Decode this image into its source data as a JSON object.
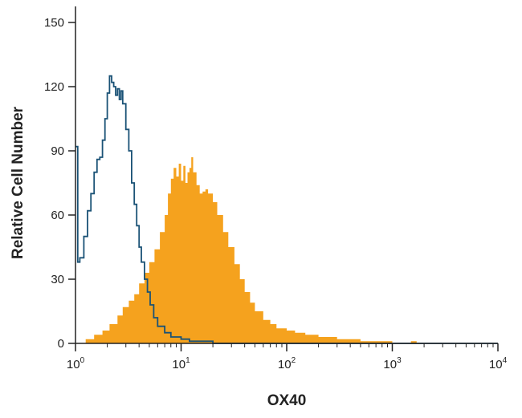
{
  "chart_data": {
    "type": "histogram",
    "xlabel": "OX40",
    "ylabel": "Relative Cell Number",
    "x_scale": "log",
    "xlim": [
      1,
      10000
    ],
    "ylim": [
      0,
      150
    ],
    "yticks": [
      "0",
      "30",
      "60",
      "90",
      "120",
      "150"
    ],
    "xticks": [
      {
        "base": "10",
        "exp": "0",
        "value": 1
      },
      {
        "base": "10",
        "exp": "1",
        "value": 10
      },
      {
        "base": "10",
        "exp": "2",
        "value": 100
      },
      {
        "base": "10",
        "exp": "3",
        "value": 1000
      },
      {
        "base": "10",
        "exp": "4",
        "value": 10000
      }
    ],
    "grid": false,
    "legend": "none",
    "series": [
      {
        "style": "filled",
        "color": "#f5a21e",
        "points": [
          [
            1,
            0
          ],
          [
            1.25,
            2
          ],
          [
            1.5,
            4
          ],
          [
            1.8,
            6
          ],
          [
            2.1,
            9
          ],
          [
            2.5,
            13
          ],
          [
            2.8,
            17
          ],
          [
            3.2,
            20
          ],
          [
            3.6,
            23
          ],
          [
            4.0,
            28
          ],
          [
            4.5,
            33
          ],
          [
            5.0,
            38
          ],
          [
            5.6,
            44
          ],
          [
            6.3,
            52
          ],
          [
            7.0,
            60
          ],
          [
            7.5,
            70
          ],
          [
            8.0,
            77
          ],
          [
            8.5,
            82
          ],
          [
            9.0,
            78
          ],
          [
            9.5,
            84
          ],
          [
            10,
            76
          ],
          [
            10.5,
            83
          ],
          [
            11,
            75
          ],
          [
            11.5,
            80
          ],
          [
            12,
            82
          ],
          [
            12.5,
            87
          ],
          [
            13,
            80
          ],
          [
            14,
            74
          ],
          [
            15,
            70
          ],
          [
            16,
            71
          ],
          [
            17,
            72
          ],
          [
            18,
            70
          ],
          [
            20,
            66
          ],
          [
            22,
            60
          ],
          [
            25,
            52
          ],
          [
            28,
            45
          ],
          [
            32,
            37
          ],
          [
            36,
            30
          ],
          [
            40,
            24
          ],
          [
            45,
            19
          ],
          [
            50,
            15
          ],
          [
            60,
            11
          ],
          [
            70,
            9
          ],
          [
            80,
            7
          ],
          [
            100,
            6
          ],
          [
            120,
            5
          ],
          [
            150,
            4
          ],
          [
            200,
            3
          ],
          [
            300,
            2
          ],
          [
            500,
            1
          ],
          [
            700,
            1
          ],
          [
            1000,
            0
          ],
          [
            1500,
            1
          ],
          [
            1700,
            0
          ],
          [
            10000,
            0
          ]
        ]
      },
      {
        "style": "line",
        "color": "#1a5276",
        "points": [
          [
            1,
            92
          ],
          [
            1.05,
            38
          ],
          [
            1.1,
            40
          ],
          [
            1.2,
            50
          ],
          [
            1.3,
            62
          ],
          [
            1.4,
            70
          ],
          [
            1.5,
            80
          ],
          [
            1.6,
            86
          ],
          [
            1.7,
            87
          ],
          [
            1.8,
            95
          ],
          [
            1.9,
            105
          ],
          [
            2.0,
            117
          ],
          [
            2.1,
            125
          ],
          [
            2.2,
            122
          ],
          [
            2.3,
            120
          ],
          [
            2.4,
            116
          ],
          [
            2.5,
            119
          ],
          [
            2.6,
            114
          ],
          [
            2.7,
            118
          ],
          [
            2.8,
            112
          ],
          [
            3.0,
            100
          ],
          [
            3.2,
            90
          ],
          [
            3.4,
            75
          ],
          [
            3.6,
            65
          ],
          [
            3.8,
            55
          ],
          [
            4.0,
            45
          ],
          [
            4.2,
            38
          ],
          [
            4.5,
            30
          ],
          [
            4.8,
            24
          ],
          [
            5.1,
            18
          ],
          [
            5.5,
            12
          ],
          [
            6.0,
            8
          ],
          [
            7.0,
            5
          ],
          [
            8.0,
            3
          ],
          [
            10,
            2
          ],
          [
            12,
            1
          ],
          [
            15,
            1
          ],
          [
            20,
            0
          ],
          [
            10000,
            0
          ]
        ]
      }
    ]
  }
}
